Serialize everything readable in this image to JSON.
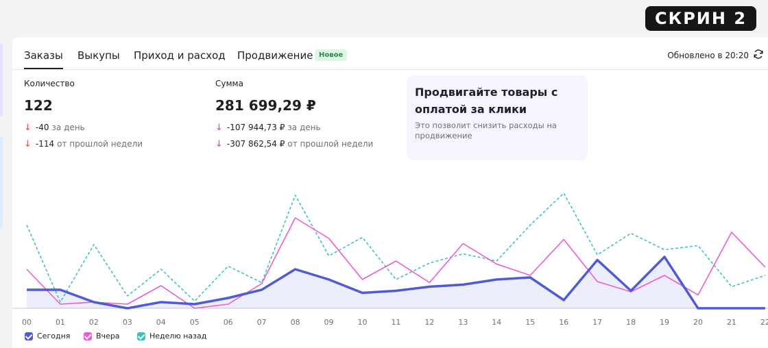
{
  "overlay_label": "СКРИН 2",
  "tabs": [
    {
      "label": "Заказы",
      "active": true
    },
    {
      "label": "Выкупы"
    },
    {
      "label": "Приход и расход"
    },
    {
      "label": "Продвижение"
    }
  ],
  "new_badge": "Новое",
  "updated_text": "Обновлено в 20:20",
  "metrics": {
    "quantity": {
      "label": "Количество",
      "value": "122",
      "deltas": [
        {
          "value": "-40",
          "suffix": "за день"
        },
        {
          "value": "-114",
          "suffix": "от прошлой недели"
        }
      ]
    },
    "sum": {
      "label": "Сумма",
      "value": "281 699,29 ₽",
      "deltas": [
        {
          "value": "-107 944,73 ₽",
          "suffix": "за день"
        },
        {
          "value": "-307 862,54 ₽",
          "suffix": "от прошлой недели"
        }
      ]
    }
  },
  "promo": {
    "title": "Продвигайте товары с оплатой за клики",
    "text": "Это позволит снизить расходы на продвижение"
  },
  "chart_data": {
    "type": "line",
    "x": [
      "00",
      "01",
      "02",
      "03",
      "04",
      "05",
      "06",
      "07",
      "08",
      "09",
      "10",
      "11",
      "12",
      "13",
      "14",
      "15",
      "16",
      "17",
      "18",
      "19",
      "20",
      "21",
      "22"
    ],
    "ylim": [
      0,
      9
    ],
    "series": [
      {
        "name": "Сегодня",
        "color": "#4f5bd5",
        "values": [
          1.8,
          1.8,
          0.6,
          0,
          0.6,
          0.4,
          1,
          1.8,
          3.8,
          2.8,
          1.5,
          1.7,
          2.1,
          2.3,
          2.8,
          3,
          0.8,
          4.7,
          1.7,
          5,
          0,
          0,
          0
        ]
      },
      {
        "name": "Вчера",
        "color": "#ec5bd0",
        "values": [
          3.8,
          0.4,
          0.6,
          0.4,
          2.2,
          0,
          0.4,
          2.4,
          8.8,
          6.8,
          2.8,
          4.6,
          2.5,
          6.3,
          4.3,
          3.2,
          6.7,
          2.6,
          1.6,
          3.2,
          1.3,
          7.4,
          4
        ]
      },
      {
        "name": "Неделю назад",
        "color": "#3cc1c1",
        "values": [
          8.1,
          0.6,
          6.2,
          1.2,
          3.8,
          0.7,
          4.1,
          2.5,
          11,
          5.1,
          6.9,
          2.8,
          4.4,
          5.3,
          4.6,
          8.1,
          11.2,
          5.2,
          7.3,
          5.7,
          6.1,
          2.1,
          3.2
        ]
      }
    ],
    "legend_position": "bottom-left",
    "grid": false
  }
}
